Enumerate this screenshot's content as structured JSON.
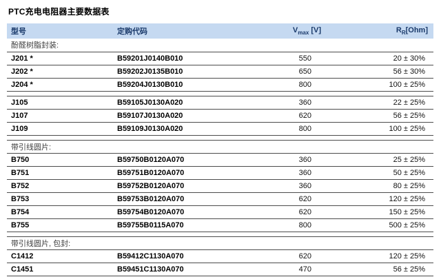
{
  "title": "PTC充电电阻器主要数据表",
  "colors": {
    "header_bg": "#c5d9f1",
    "header_text": "#1a3a6b",
    "row_border": "#4b4b4b"
  },
  "table": {
    "headers": {
      "model": "型号",
      "order_code": "定购代码",
      "vmax": {
        "base": "V",
        "sub": "max",
        "unit": " [V]"
      },
      "rr": {
        "base": "R",
        "sub": "R",
        "unit": "[Ohm]"
      }
    },
    "rows": [
      {
        "type": "section",
        "label": "酚醛树脂封装:"
      },
      {
        "type": "data",
        "model": "J201 *",
        "code": "B59201J0140B010",
        "vmax": "550",
        "rr": "20 ± 30%"
      },
      {
        "type": "data",
        "model": "J202 *",
        "code": "B59202J0135B010",
        "vmax": "650",
        "rr": "56 ± 30%"
      },
      {
        "type": "data",
        "model": "J204 *",
        "code": "B59204J0130B010",
        "vmax": "800",
        "rr": "100 ± 25%"
      },
      {
        "type": "spacer"
      },
      {
        "type": "data",
        "model": "J105",
        "code": "B59105J0130A020",
        "vmax": "360",
        "rr": "22 ± 25%"
      },
      {
        "type": "data",
        "model": "J107",
        "code": "B59107J0130A020",
        "vmax": "620",
        "rr": "56 ± 25%"
      },
      {
        "type": "data",
        "model": "J109",
        "code": "B59109J0130A020",
        "vmax": "800",
        "rr": "100 ± 25%"
      },
      {
        "type": "spacer"
      },
      {
        "type": "section",
        "label": "带引线圆片:"
      },
      {
        "type": "data",
        "model": "B750",
        "code": "B59750B0120A070",
        "vmax": "360",
        "rr": "25 ± 25%"
      },
      {
        "type": "data",
        "model": "B751",
        "code": "B59751B0120A070",
        "vmax": "360",
        "rr": "50 ± 25%"
      },
      {
        "type": "data",
        "model": "B752",
        "code": "B59752B0120A070",
        "vmax": "360",
        "rr": "80 ± 25%"
      },
      {
        "type": "data",
        "model": "B753",
        "code": "B59753B0120A070",
        "vmax": "620",
        "rr": "120 ± 25%"
      },
      {
        "type": "data",
        "model": "B754",
        "code": "B59754B0120A070",
        "vmax": "620",
        "rr": "150 ± 25%"
      },
      {
        "type": "data",
        "model": "B755",
        "code": "B59755B0115A070",
        "vmax": "800",
        "rr": "500 ± 25%"
      },
      {
        "type": "spacer"
      },
      {
        "type": "section",
        "label": "带引线圆片, 包封:"
      },
      {
        "type": "data",
        "model": "C1412",
        "code": "B59412C1130A070",
        "vmax": "620",
        "rr": "120 ± 25%"
      },
      {
        "type": "data",
        "model": "C1451",
        "code": "B59451C1130A070",
        "vmax": "470",
        "rr": "56 ± 25%"
      }
    ]
  }
}
